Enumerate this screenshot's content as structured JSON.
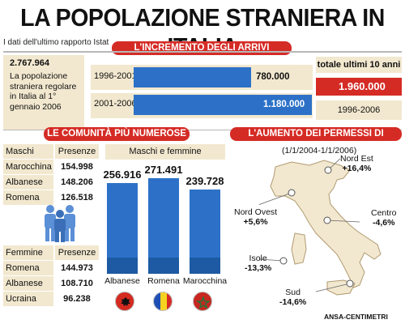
{
  "title": "LA POPOLAZIONE STRANIERA IN ITALIA",
  "subtitle": "I dati dell'ultimo rapporto Istat",
  "arrivi": {
    "header": "L'INCREMENTO DEGLI ARRIVI",
    "kpi_value": "2.767.964",
    "kpi_label": "La popolazione straniera regolare in Italia al 1° gennaio 2006",
    "total_label": "totale ultimi 10 anni",
    "total_value": "1.960.000",
    "total_period": "1996-2006"
  },
  "comunita": {
    "header": "LE COMUNITÀ PIÙ NUMEROSE",
    "maschi": {
      "h1": "Maschi",
      "h2": "Presenze",
      "rows": [
        {
          "name": "Marocchina",
          "value": "154.998"
        },
        {
          "name": "Albanese",
          "value": "148.206"
        },
        {
          "name": "Romena",
          "value": "126.518"
        }
      ]
    },
    "femmine": {
      "h1": "Femmine",
      "h2": "Presenze",
      "rows": [
        {
          "name": "Romena",
          "value": "144.973"
        },
        {
          "name": "Albanese",
          "value": "108.710"
        },
        {
          "name": "Ucraina",
          "value": "96.238"
        }
      ]
    },
    "mf_label": "Maschi e femmine"
  },
  "permessi": {
    "header": "L'AUMENTO DEI PERMESSI DI SOGGIORNO",
    "period": "(1/1/2004-1/1/2006)",
    "regions": [
      {
        "name": "Nord Est",
        "value": "+16,4%"
      },
      {
        "name": "Nord Ovest",
        "value": "+5,6%"
      },
      {
        "name": "Centro",
        "value": "-4,6%"
      },
      {
        "name": "Isole",
        "value": "-13,3%"
      },
      {
        "name": "Sud",
        "value": "-14,6%"
      }
    ]
  },
  "credit": "ANSA-CENTIMETRI",
  "colors": {
    "red": "#d52b25",
    "blue": "#2c71c7",
    "beige": "#f2e8cf"
  },
  "chart_data": [
    {
      "type": "bar",
      "orientation": "horizontal",
      "categories": [
        "1996-2001",
        "2001-2006"
      ],
      "values": [
        780000,
        1180000
      ],
      "value_labels": [
        "780.000",
        "1.180.000"
      ]
    },
    {
      "type": "bar",
      "categories": [
        "Albanese",
        "Romena",
        "Marocchina"
      ],
      "values": [
        256916,
        271491,
        239728
      ],
      "value_labels": [
        "256.916",
        "271.491",
        "239.728"
      ]
    }
  ]
}
